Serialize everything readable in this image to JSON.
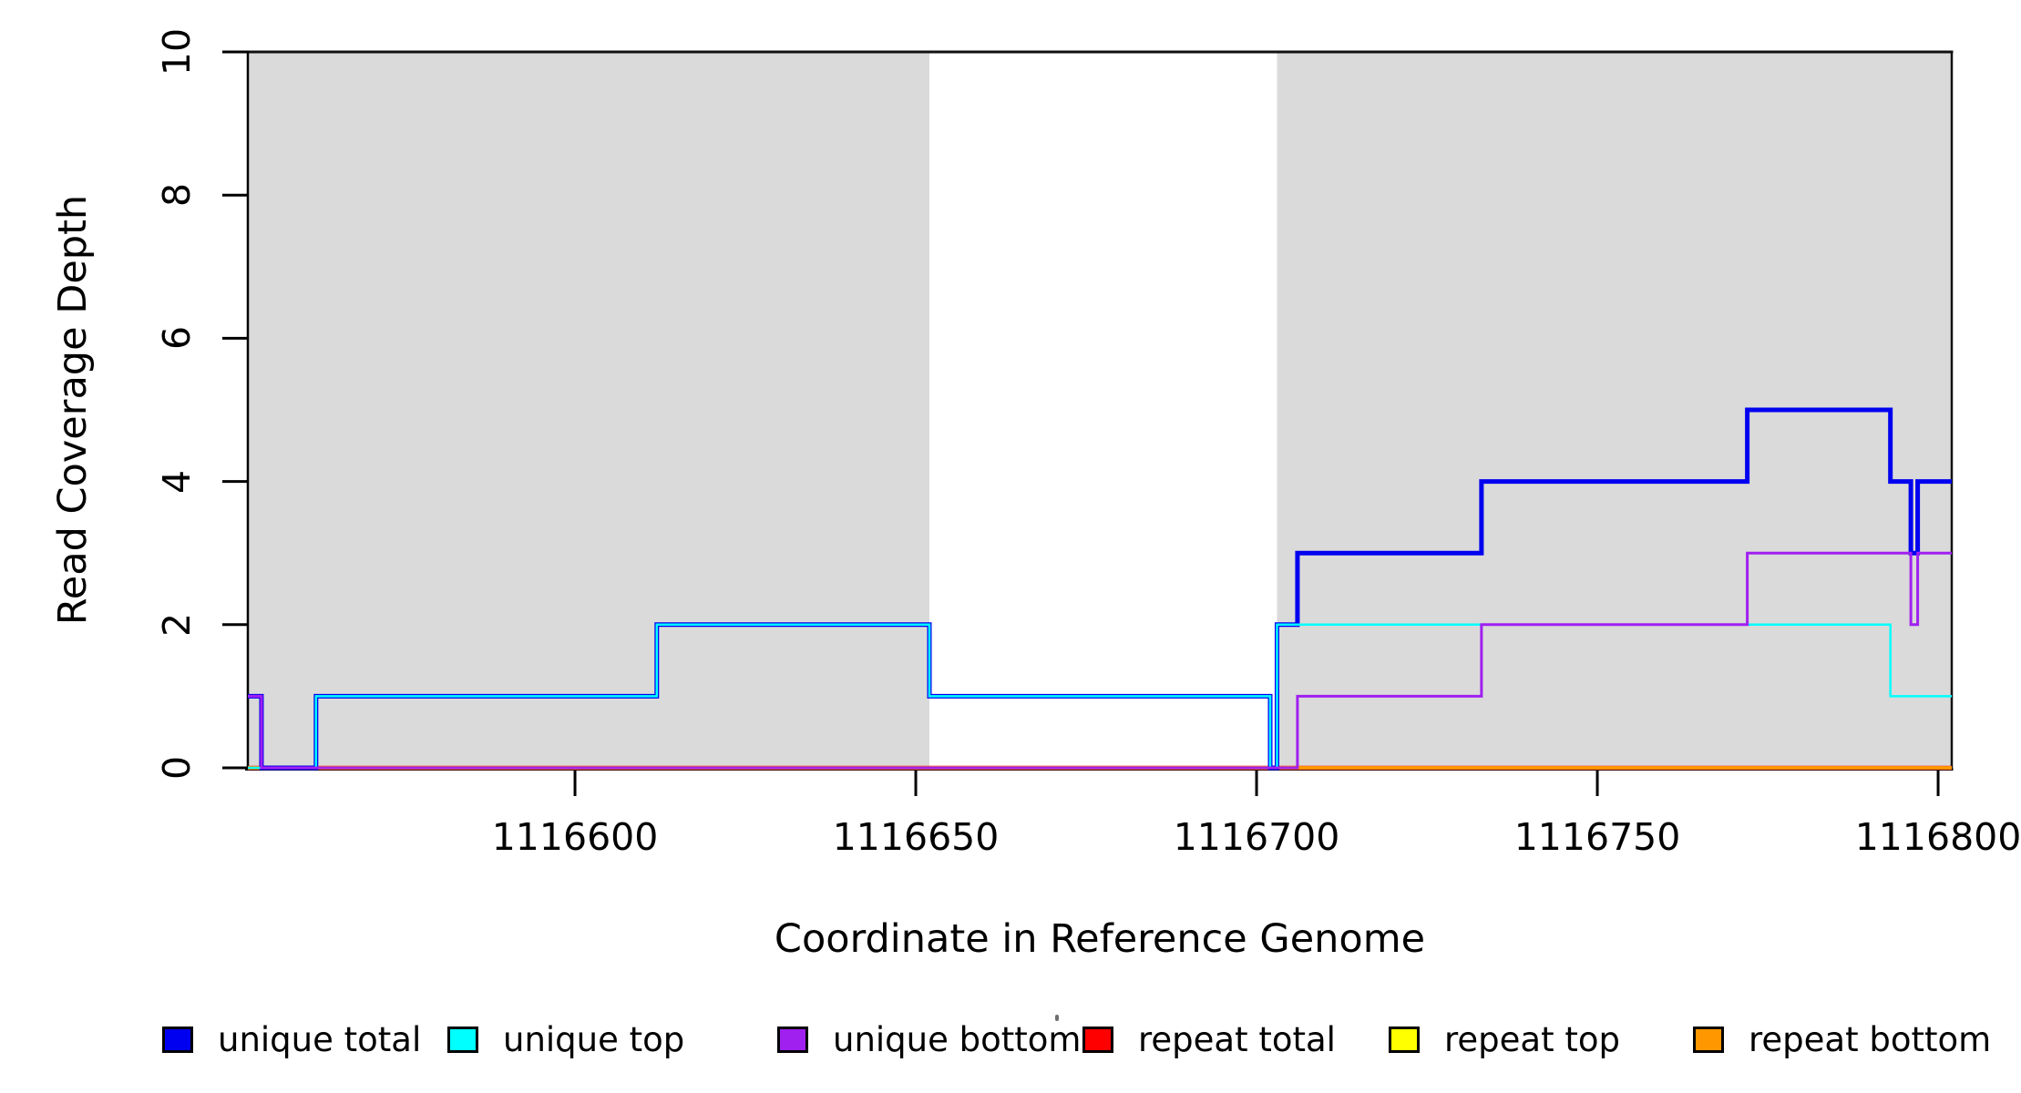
{
  "chart_data": {
    "type": "line",
    "subtype": "step-coverage-plot",
    "title": "",
    "xlabel": "Coordinate in Reference Genome",
    "ylabel": "Read Coverage Depth",
    "xlim": [
      1116552,
      1116802
    ],
    "ylim": [
      0,
      10
    ],
    "x_ticks": [
      1116600,
      1116650,
      1116700,
      1116750,
      1116800
    ],
    "y_ticks": [
      0,
      2,
      4,
      6,
      8,
      10
    ],
    "grid": false,
    "legend_position": "bottom",
    "colors": {
      "unique_total": "#0000F0",
      "unique_top": "#00FFFF",
      "unique_bottom": "#A020F0",
      "repeat_total": "#FF0000",
      "repeat_top": "#FFFF00",
      "repeat_bottom": "#FF9800",
      "shaded_region": "#DADADA",
      "axis": "#000000"
    },
    "shaded_regions": [
      {
        "name": "left-shaded-region",
        "x0": 1116552,
        "x1": 1116652
      },
      {
        "name": "right-shaded-region",
        "x0": 1116703,
        "x1": 1116802
      }
    ],
    "series": [
      {
        "name": "repeat total",
        "color": "#FF0000",
        "width": 4.5,
        "segments": [
          [
            1116552,
            1116802,
            0
          ]
        ]
      },
      {
        "name": "repeat top",
        "color": "#FFFF00",
        "width": 3.5,
        "segments": [
          [
            1116552,
            1116802,
            0
          ]
        ]
      },
      {
        "name": "repeat bottom",
        "color": "#FF9800",
        "width": 3,
        "segments": [
          [
            1116552,
            1116802,
            0
          ]
        ]
      },
      {
        "name": "unique total",
        "color": "#0000F0",
        "width": 5,
        "segments": [
          [
            1116552,
            1116554,
            1
          ],
          [
            1116554,
            1116562,
            0
          ],
          [
            1116562,
            1116612,
            1
          ],
          [
            1116612,
            1116652,
            2
          ],
          [
            1116652,
            1116702,
            1
          ],
          [
            1116702,
            1116703,
            0
          ],
          [
            1116703,
            1116706,
            2
          ],
          [
            1116706,
            1116733,
            3
          ],
          [
            1116733,
            1116772,
            4
          ],
          [
            1116772,
            1116793,
            5
          ],
          [
            1116793,
            1116796,
            4
          ],
          [
            1116796,
            1116797,
            3
          ],
          [
            1116797,
            1116802,
            4
          ]
        ]
      },
      {
        "name": "unique top",
        "color": "#00FFFF",
        "width": 2.5,
        "segments": [
          [
            1116552,
            1116562,
            0
          ],
          [
            1116562,
            1116612,
            1
          ],
          [
            1116612,
            1116652,
            2
          ],
          [
            1116652,
            1116702,
            1
          ],
          [
            1116702,
            1116703,
            0
          ],
          [
            1116703,
            1116793,
            2
          ],
          [
            1116793,
            1116802,
            1
          ]
        ]
      },
      {
        "name": "unique bottom",
        "color": "#A020F0",
        "width": 3,
        "segments": [
          [
            1116552,
            1116554,
            1
          ],
          [
            1116554,
            1116706,
            0
          ],
          [
            1116706,
            1116733,
            1
          ],
          [
            1116733,
            1116772,
            2
          ],
          [
            1116772,
            1116796,
            3
          ],
          [
            1116796,
            1116797,
            2
          ],
          [
            1116797,
            1116802,
            3
          ]
        ]
      }
    ],
    "legend": [
      {
        "label": "unique total",
        "color": "#0000F0"
      },
      {
        "label": "unique top",
        "color": "#00FFFF"
      },
      {
        "label": "unique bottom",
        "color": "#A020F0"
      },
      {
        "label": "repeat total",
        "color": "#FF0000"
      },
      {
        "label": "repeat top",
        "color": "#FFFF00"
      },
      {
        "label": "repeat bottom",
        "color": "#FF9800"
      }
    ]
  }
}
